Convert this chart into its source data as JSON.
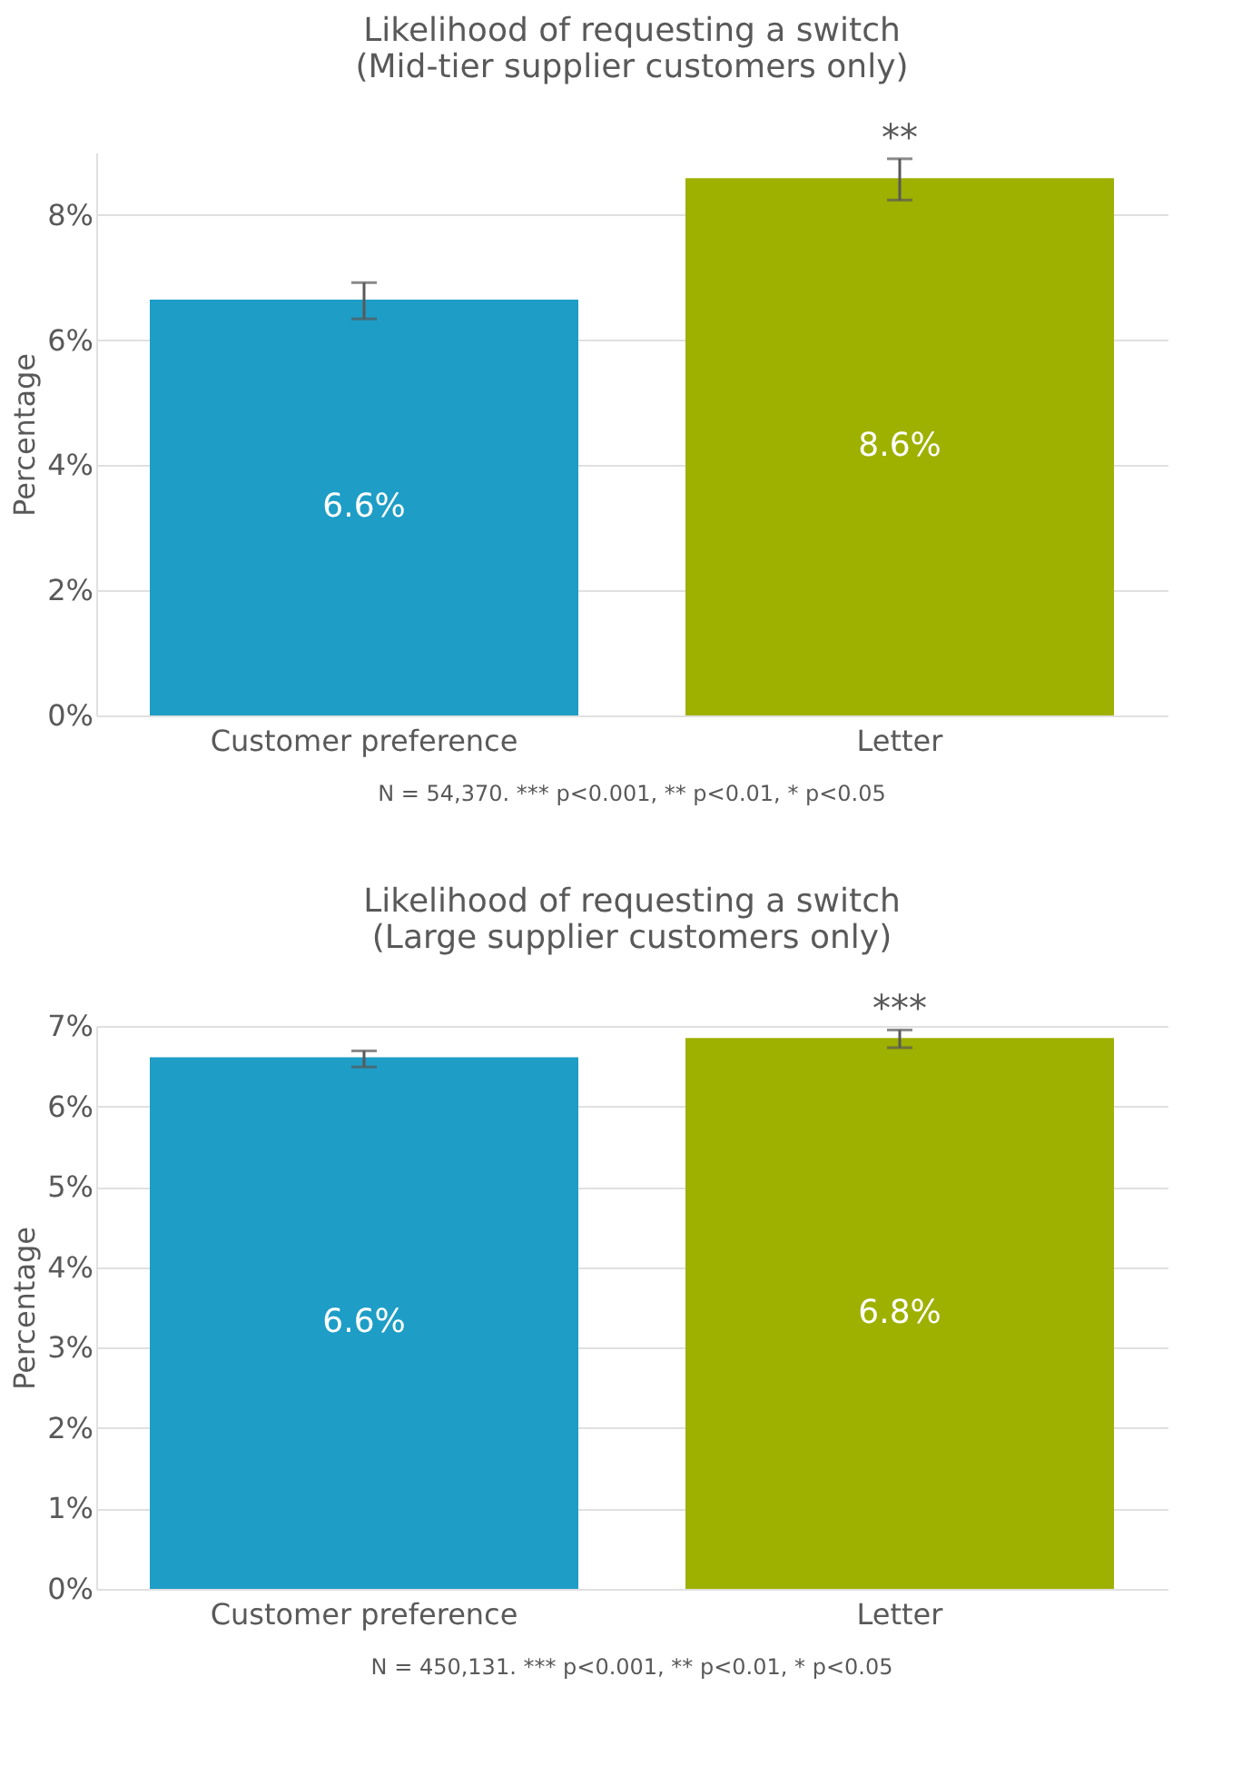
{
  "chart_data": [
    {
      "type": "bar",
      "title": "Likelihood of requesting a switch\n(Mid-tier supplier customers only)",
      "ylabel": "Percentage",
      "categories": [
        "Customer preference",
        "Letter"
      ],
      "values": [
        6.65,
        8.59
      ],
      "colors": [
        "#1e9dc6",
        "#9eb000"
      ],
      "value_labels": [
        "6.6%",
        "8.6%"
      ],
      "errors": [
        [
          6.34,
          6.92
        ],
        [
          8.24,
          8.9
        ]
      ],
      "ylim": [
        0,
        9
      ],
      "yticks": [
        {
          "value": 0,
          "label": "0%"
        },
        {
          "value": 2,
          "label": "2%"
        },
        {
          "value": 4,
          "label": "4%"
        },
        {
          "value": 6,
          "label": "6%"
        },
        {
          "value": 8,
          "label": "8%"
        }
      ],
      "grid": "y",
      "annotations": [
        {
          "text": "**",
          "x": "Letter",
          "y": 8.9
        },
        "N = 54,370. *** p<0.001, ** p<0.01, * p<0.05"
      ]
    },
    {
      "type": "bar",
      "title": "Likelihood of requesting a switch\n(Large supplier customers only)",
      "ylabel": "Percentage",
      "categories": [
        "Customer preference",
        "Letter"
      ],
      "values": [
        6.61,
        6.85
      ],
      "colors": [
        "#1e9dc6",
        "#9eb000"
      ],
      "value_labels": [
        "6.6%",
        "6.8%"
      ],
      "errors": [
        [
          6.49,
          6.69
        ],
        [
          6.73,
          6.95
        ]
      ],
      "ylim": [
        0,
        7
      ],
      "yticks": [
        {
          "value": 0,
          "label": "0%"
        },
        {
          "value": 1,
          "label": "1%"
        },
        {
          "value": 2,
          "label": "2%"
        },
        {
          "value": 3,
          "label": "3%"
        },
        {
          "value": 4,
          "label": "4%"
        },
        {
          "value": 5,
          "label": "5%"
        },
        {
          "value": 6,
          "label": "6%"
        },
        {
          "value": 7,
          "label": "7%"
        }
      ],
      "grid": "y",
      "annotations": [
        {
          "text": "***",
          "x": "Letter",
          "y": 6.95
        },
        "N = 450,131. *** p<0.001, ** p<0.01, * p<0.05"
      ]
    }
  ]
}
